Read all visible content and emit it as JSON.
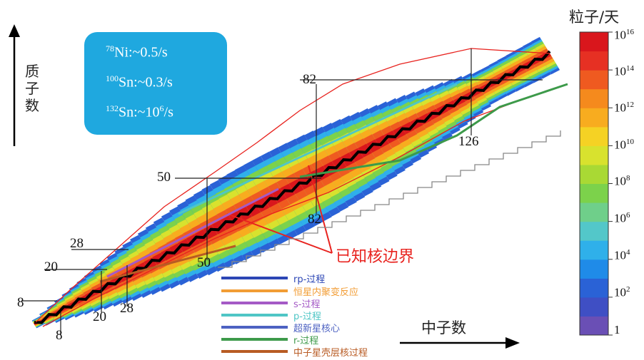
{
  "chart_data": {
    "type": "heatmap",
    "title": "",
    "xlabel": "中子数",
    "ylabel": "质子数",
    "colorbar": {
      "title": "粒子/天",
      "ticks": [
        "1",
        "10^2",
        "10^4",
        "10^6",
        "10^8",
        "10^10",
        "10^12",
        "10^14",
        "10^16"
      ],
      "exponents": [
        0,
        2,
        4,
        6,
        8,
        10,
        12,
        14,
        16
      ],
      "colors": [
        "#6a4fb5",
        "#3f4fc4",
        "#2a62d6",
        "#1f8be8",
        "#2fb0ea",
        "#53c7c9",
        "#6fcf8a",
        "#7cd24b",
        "#a9d934",
        "#d8e22e",
        "#f5d224",
        "#f8ac1f",
        "#f58a1d",
        "#ef5a20",
        "#e63023",
        "#d9161c"
      ]
    },
    "neutron_magic_labels": [
      "8",
      "20",
      "28",
      "50",
      "82",
      "126"
    ],
    "proton_magic_labels": [
      "8",
      "20",
      "28",
      "50",
      "82"
    ],
    "annotation": "已知核边界",
    "info_box": [
      {
        "mass": "78",
        "symbol": "Ni",
        "rate": ":~0.5/s"
      },
      {
        "mass": "100",
        "symbol": "Sn",
        "rate": ":~0.3/s"
      },
      {
        "mass": "132",
        "symbol": "Sn",
        "rate": ":~10",
        "rate_exp": "6",
        "rate_tail": "/s"
      }
    ],
    "legend": [
      {
        "label": "rp-过程",
        "color": "#2c46b5"
      },
      {
        "label": "恒星内聚变反应",
        "color": "#f29d35"
      },
      {
        "label": "s-过程",
        "color": "#a55ac6"
      },
      {
        "label": "p-过程",
        "color": "#4fc6c6"
      },
      {
        "label": "超新星核心",
        "color": "#4d62c2"
      },
      {
        "label": "r-过程",
        "color": "#3d9a4a"
      },
      {
        "label": "中子星壳层核过程",
        "color": "#b85b23"
      }
    ]
  }
}
